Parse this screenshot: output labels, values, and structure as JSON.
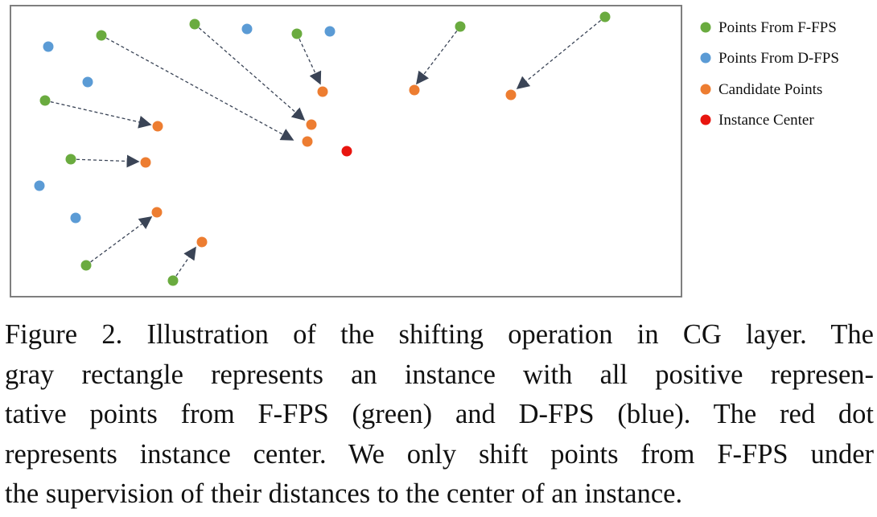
{
  "legend": [
    {
      "label": "Points From F-FPS",
      "color": "#6aab3f"
    },
    {
      "label": "Points From D-FPS",
      "color": "#5b9bd5"
    },
    {
      "label": "Candidate Points",
      "color": "#ed7d31"
    },
    {
      "label": "Instance Center",
      "color": "#e8150f"
    }
  ],
  "colors": {
    "frame": "#7f7f7f",
    "arrow": "#3a4456"
  },
  "caption": {
    "lines": [
      "Figure 2. Illustration of the shifting operation in CG layer.  The",
      "gray rectangle represents an instance with all positive represen-",
      "tative points from F-FPS (green) and D-FPS (blue).  The red dot",
      "represents instance center. We only shift points from F-FPS under",
      "the supervision of their distances to the center of an instance."
    ]
  }
}
